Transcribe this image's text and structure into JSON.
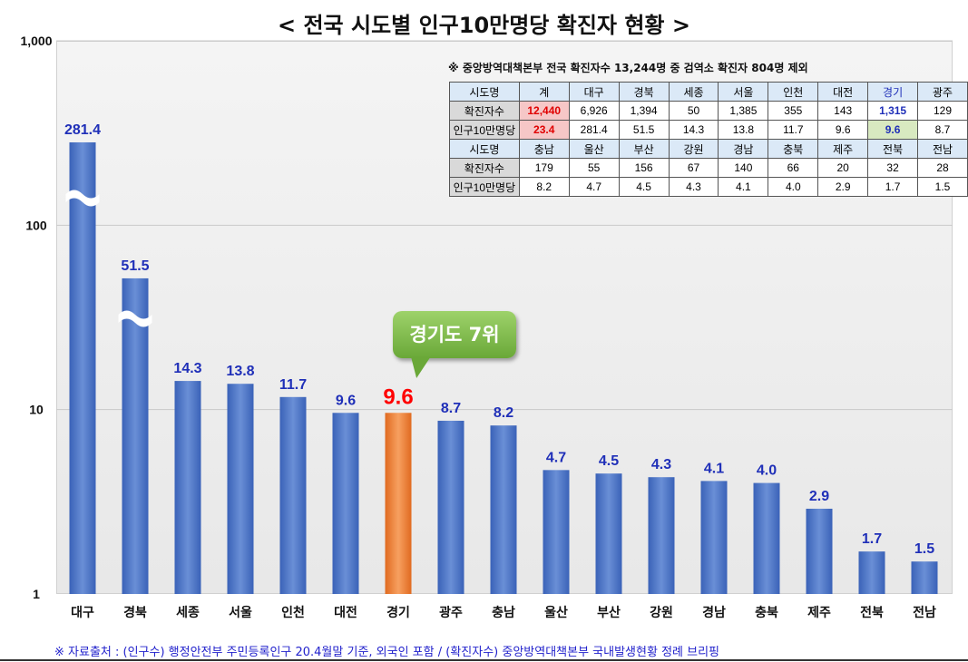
{
  "title": "< 전국 시도별 인구10만명당 확진자 현황 >",
  "colors": {
    "bar": "#4472c4",
    "highlight_bar": "#ed7d31",
    "label": "#1f2fb8",
    "highlight_label": "#ff0000"
  },
  "chart_data": {
    "type": "bar",
    "yscale": "log",
    "ylim": [
      1,
      1000
    ],
    "yticks": [
      1,
      10,
      100,
      1000
    ],
    "ytick_labels": [
      "1",
      "10",
      "100",
      "1,000"
    ],
    "categories": [
      "대구",
      "경북",
      "세종",
      "서울",
      "인천",
      "대전",
      "경기",
      "광주",
      "충남",
      "울산",
      "부산",
      "강원",
      "경남",
      "충북",
      "제주",
      "전북",
      "전남"
    ],
    "values": [
      281.4,
      51.5,
      14.3,
      13.8,
      11.7,
      9.6,
      9.6,
      8.7,
      8.2,
      4.7,
      4.5,
      4.3,
      4.1,
      4.0,
      2.9,
      1.7,
      1.5
    ],
    "value_labels": [
      "281.4",
      "51.5",
      "14.3",
      "13.8",
      "11.7",
      "9.6",
      "9.6",
      "8.7",
      "8.2",
      "4.7",
      "4.5",
      "4.3",
      "4.1",
      "4.0",
      "2.9",
      "1.7",
      "1.5"
    ],
    "highlight_index": 6,
    "axis_breaks": [
      "대구",
      "경북"
    ],
    "grid": true
  },
  "callout": "경기도 7위",
  "note": "※ 중앙방역대책본부 전국 확진자수 13,244명 중 검역소 확진자 804명 제외",
  "table": {
    "block1": {
      "header": [
        "시도명",
        "계",
        "대구",
        "경북",
        "세종",
        "서울",
        "인천",
        "대전",
        "경기",
        "광주"
      ],
      "cases": [
        "확진자수",
        "12,440",
        "6,926",
        "1,394",
        "50",
        "1,385",
        "355",
        "143",
        "1,315",
        "129"
      ],
      "per100k": [
        "인구10만명당",
        "23.4",
        "281.4",
        "51.5",
        "14.3",
        "13.8",
        "11.7",
        "9.6",
        "9.6",
        "8.7"
      ]
    },
    "block2": {
      "header": [
        "시도명",
        "충남",
        "울산",
        "부산",
        "강원",
        "경남",
        "충북",
        "제주",
        "전북",
        "전남"
      ],
      "cases": [
        "확진자수",
        "179",
        "55",
        "156",
        "67",
        "140",
        "66",
        "20",
        "32",
        "28"
      ],
      "per100k": [
        "인구10만명당",
        "8.2",
        "4.7",
        "4.5",
        "4.3",
        "4.1",
        "4.0",
        "2.9",
        "1.7",
        "1.5"
      ]
    }
  },
  "source": "※ 자료출처 : (인구수) 행정안전부 주민등록인구 20.4월말 기준, 외국인 포함 / (확진자수) 중앙방역대책본부 국내발생현황 정례 브리핑"
}
